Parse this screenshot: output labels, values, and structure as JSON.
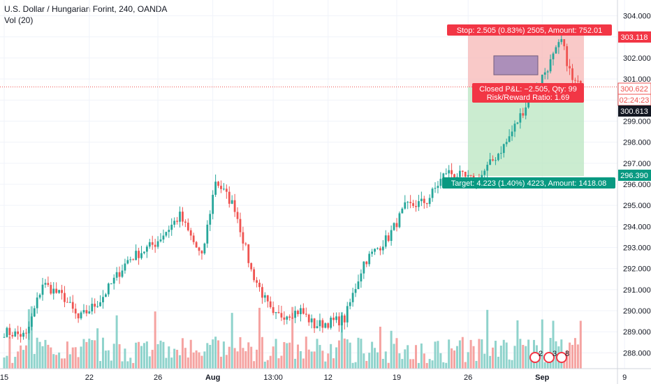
{
  "header": {
    "title": "U.S. Dollar / Hungarian Forint, 240, OANDA",
    "volume_label": "Vol (20)"
  },
  "price_labels": {
    "stop_price": "303.118",
    "last_price": "300.622",
    "countdown": "02:24:23",
    "close_price": "300.613",
    "target_price": "296.390"
  },
  "position": {
    "stop_text": "Stop: 2.505 (0.83%) 2505, Amount: 752.01",
    "pnl_text": "Closed P&L: −2.505, Qty: 99",
    "rr_text": "Risk/Reward Ratio: 1.69",
    "target_text": "Target: 4.223 (1.40%) 4223, Amount: 1418.08"
  },
  "events": [
    "2",
    "3",
    "8"
  ],
  "colors": {
    "up": "#26a69a",
    "down": "#ef5350",
    "vol_up": "#8fd3cc",
    "vol_down": "#f5a3a1",
    "stop_zone": "#f7b7b5",
    "target_zone": "#b9e6c0",
    "stop_label": "#f23645",
    "target_label": "#089981",
    "entry_box": "#9f86b8"
  },
  "chart_data": {
    "type": "candlestick",
    "symbol": "USDHUF",
    "timeframe": "240",
    "y_ticks": [
      288.0,
      289.0,
      290.0,
      291.0,
      292.0,
      293.0,
      294.0,
      295.0,
      296.0,
      297.0,
      298.0,
      299.0,
      300.0,
      301.0,
      302.0,
      303.0,
      304.0
    ],
    "y_tick_labels": [
      "288.000",
      "289.000",
      "290.000",
      "291.000",
      "292.000",
      "293.000",
      "294.000",
      "295.000",
      "296.000",
      "297.000",
      "298.000",
      "299.000",
      "300.000",
      "301.000",
      "302.000",
      "303.000",
      "304.000"
    ],
    "ylim": [
      287.25,
      304.75
    ],
    "x_tick_labels": [
      "15",
      "22",
      "26",
      "Aug",
      "13:00",
      "12",
      "19",
      "26",
      "Sep",
      "9"
    ],
    "x_tick_bar_index": [
      0,
      31,
      56,
      76,
      98,
      118,
      143,
      169,
      196,
      226
    ],
    "bar_count": 236,
    "anchor_closes": [
      [
        0,
        289.0
      ],
      [
        8,
        288.8
      ],
      [
        14,
        291.3
      ],
      [
        22,
        290.6
      ],
      [
        27,
        289.6
      ],
      [
        35,
        290.5
      ],
      [
        45,
        292.4
      ],
      [
        55,
        293.2
      ],
      [
        64,
        294.5
      ],
      [
        72,
        292.5
      ],
      [
        77,
        296.2
      ],
      [
        84,
        294.9
      ],
      [
        90,
        291.9
      ],
      [
        98,
        289.7
      ],
      [
        108,
        290.0
      ],
      [
        113,
        289.3
      ],
      [
        124,
        289.6
      ],
      [
        131,
        292.3
      ],
      [
        140,
        293.5
      ],
      [
        146,
        294.9
      ],
      [
        154,
        295.2
      ],
      [
        161,
        296.6
      ],
      [
        166,
        296.4
      ],
      [
        172,
        296.1
      ],
      [
        183,
        298.0
      ],
      [
        191,
        300.0
      ],
      [
        199,
        301.8
      ],
      [
        203,
        302.8
      ],
      [
        207,
        300.9
      ],
      [
        210,
        300.613
      ]
    ],
    "stop_level": 303.118,
    "entry_level": 300.613,
    "target_level": 296.39,
    "last_price": 300.622
  }
}
